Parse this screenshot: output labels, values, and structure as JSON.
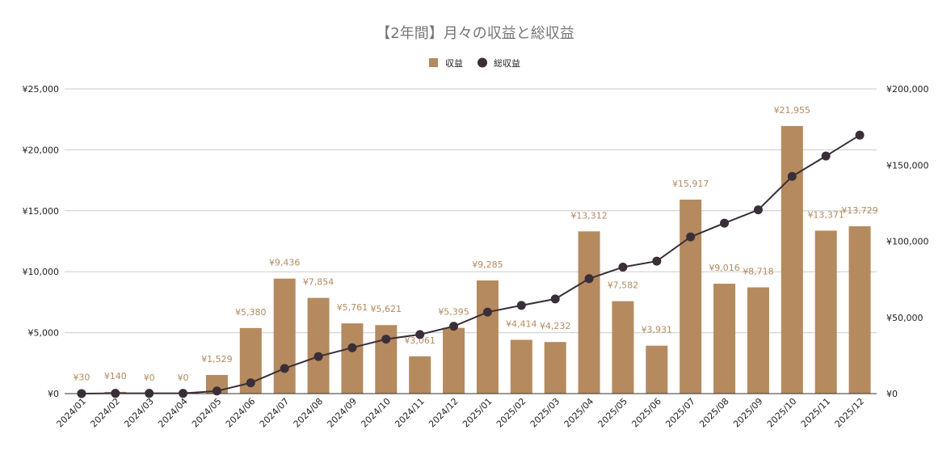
{
  "chart_data": {
    "type": "bar",
    "title": "【2年間】月々の収益と総収益",
    "legend": {
      "position": "top",
      "items": [
        {
          "name": "収益",
          "shape": "square",
          "color": "#b58a5e"
        },
        {
          "name": "総収益",
          "shape": "circle",
          "color": "#3a2e38"
        }
      ]
    },
    "categories": [
      "2024/01",
      "2024/02",
      "2024/03",
      "2024/04",
      "2024/05",
      "2024/06",
      "2024/07",
      "2024/08",
      "2024/09",
      "2024/10",
      "2024/11",
      "2024/12",
      "2025/01",
      "2025/02",
      "2025/03",
      "2025/04",
      "2025/05",
      "2025/06",
      "2025/07",
      "2025/08",
      "2025/09",
      "2025/10",
      "2025/11",
      "2025/12"
    ],
    "series": [
      {
        "name": "収益",
        "type": "bar",
        "axis": "left",
        "color": "#b58a5e",
        "values": [
          30,
          140,
          0,
          0,
          1529,
          5380,
          9436,
          7854,
          5761,
          5621,
          3061,
          5395,
          9285,
          4414,
          4232,
          13312,
          7582,
          3931,
          15917,
          9016,
          8718,
          21955,
          13371,
          13729
        ],
        "labels": [
          "¥30",
          "¥140",
          "¥0",
          "¥0",
          "¥1,529",
          "¥5,380",
          "¥9,436",
          "¥7,854",
          "¥5,761",
          "¥5,621",
          "¥3,061",
          "¥5,395",
          "¥9,285",
          "¥4,414",
          "¥4,232",
          "¥13,312",
          "¥7,582",
          "¥3,931",
          "¥15,917",
          "¥9,016",
          "¥8,718",
          "¥21,955",
          "¥13,371",
          "¥13,729"
        ]
      },
      {
        "name": "総収益",
        "type": "line",
        "axis": "right",
        "color": "#3a2e38",
        "values": [
          30,
          170,
          170,
          170,
          1699,
          7079,
          16515,
          24369,
          30130,
          35751,
          38812,
          44207,
          53492,
          57906,
          62138,
          75450,
          83032,
          86963,
          102880,
          111896,
          120614,
          142569,
          155940,
          169669
        ]
      }
    ],
    "y_left": {
      "min": 0,
      "max": 25000,
      "ticks": [
        0,
        5000,
        10000,
        15000,
        20000,
        25000
      ],
      "tick_labels": [
        "¥0",
        "¥5,000",
        "¥10,000",
        "¥15,000",
        "¥20,000",
        "¥25,000"
      ]
    },
    "y_right": {
      "min": 0,
      "max": 200000,
      "ticks": [
        0,
        50000,
        100000,
        150000,
        200000
      ],
      "tick_labels": [
        "¥0",
        "¥50,000",
        "¥100,000",
        "¥150,000",
        "¥200,000"
      ]
    },
    "grid": true
  }
}
